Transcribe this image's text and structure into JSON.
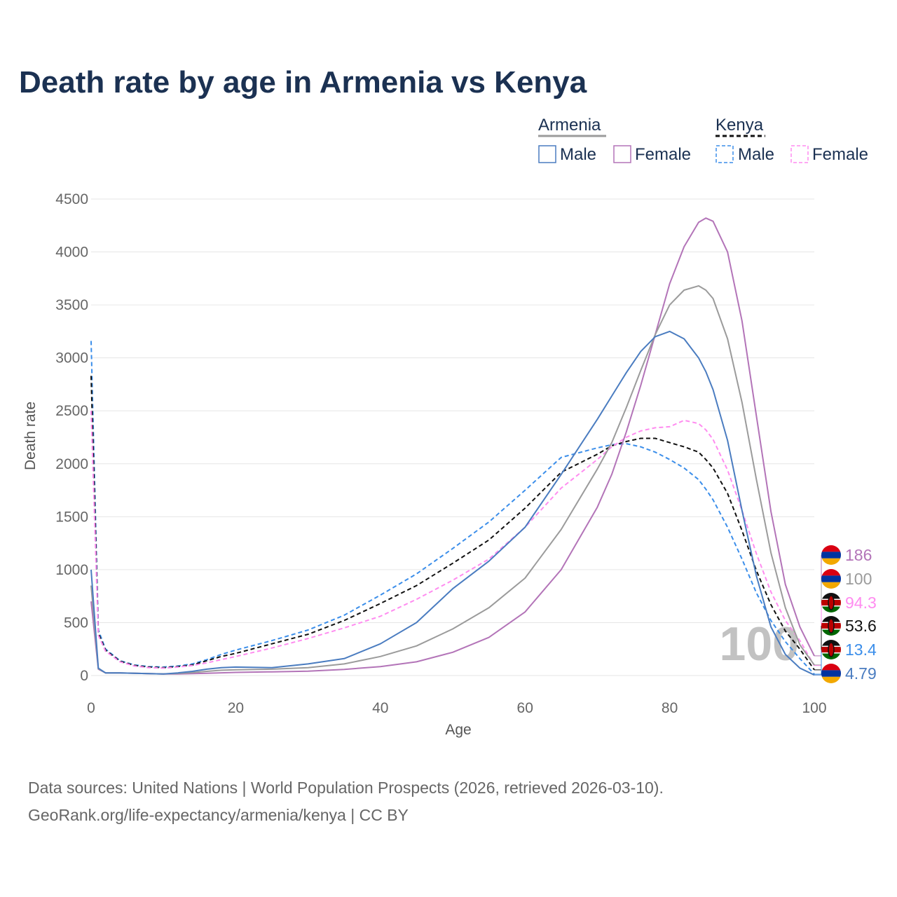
{
  "title": "Death rate by age in Armenia vs Kenya",
  "watermark": "100",
  "colors": {
    "armenia_male": "#4a7cc0",
    "armenia_female": "#b374b8",
    "armenia_total": "#9b9b9b",
    "kenya_male": "#3b8eea",
    "kenya_female": "#ff8cf0",
    "kenya_total": "#111111",
    "grid": "#e6e6e6",
    "title": "#1b3152",
    "tick": "#666666"
  },
  "legend": {
    "armenia": {
      "title": "Armenia",
      "male": "Male",
      "female": "Female"
    },
    "kenya": {
      "title": "Kenya",
      "male": "Male",
      "female": "Female"
    }
  },
  "footer": {
    "line1": "Data sources: United Nations | World Population Prospects (2026, retrieved 2026-03-10).",
    "line2": "GeoRank.org/life-expectancy/armenia/kenya | CC BY"
  },
  "chart_data": {
    "type": "line",
    "title": "Death rate by age in Armenia vs Kenya",
    "xlabel": "Age",
    "ylabel": "Death rate",
    "xlim": [
      0,
      100
    ],
    "ylim": [
      0,
      4500
    ],
    "xticks": [
      0,
      20,
      40,
      60,
      80,
      100
    ],
    "yticks": [
      0,
      500,
      1000,
      1500,
      2000,
      2500,
      3000,
      3500,
      4000,
      4500
    ],
    "x": [
      0,
      1,
      2,
      4,
      6,
      8,
      10,
      12,
      14,
      16,
      18,
      20,
      25,
      30,
      35,
      40,
      45,
      50,
      55,
      60,
      65,
      70,
      72,
      74,
      76,
      78,
      80,
      82,
      84,
      85,
      86,
      88,
      90,
      92,
      94,
      96,
      98,
      100
    ],
    "series": [
      {
        "key": "kenya_male",
        "name": "Kenya Male",
        "country": "Kenya",
        "sex": "Male",
        "dashed": true,
        "end_label": "13.4",
        "end_value": 13.4,
        "values": [
          3160,
          430,
          250,
          140,
          100,
          85,
          80,
          90,
          110,
          150,
          200,
          240,
          330,
          430,
          570,
          760,
          960,
          1200,
          1450,
          1750,
          2060,
          2150,
          2180,
          2190,
          2160,
          2110,
          2040,
          1960,
          1850,
          1760,
          1660,
          1400,
          1100,
          780,
          520,
          320,
          160,
          13
        ]
      },
      {
        "key": "kenya_total",
        "name": "Kenya Total",
        "country": "Kenya",
        "sex": "Total",
        "dashed": true,
        "end_label": "53.6",
        "end_value": 53.6,
        "values": [
          2830,
          400,
          240,
          135,
          95,
          80,
          75,
          85,
          100,
          140,
          180,
          210,
          300,
          390,
          520,
          680,
          850,
          1060,
          1280,
          1580,
          1920,
          2090,
          2170,
          2210,
          2240,
          2240,
          2200,
          2160,
          2110,
          2040,
          1960,
          1720,
          1370,
          990,
          670,
          420,
          250,
          54
        ]
      },
      {
        "key": "kenya_female",
        "name": "Kenya Female",
        "country": "Kenya",
        "sex": "Female",
        "dashed": true,
        "end_label": "94.3",
        "end_value": 94.3,
        "values": [
          2500,
          380,
          230,
          130,
          90,
          75,
          70,
          80,
          95,
          120,
          150,
          180,
          260,
          350,
          450,
          560,
          720,
          900,
          1100,
          1400,
          1770,
          2040,
          2160,
          2250,
          2310,
          2340,
          2350,
          2410,
          2380,
          2320,
          2230,
          1940,
          1560,
          1150,
          790,
          520,
          330,
          94
        ]
      },
      {
        "key": "armenia_female",
        "name": "Armenia Female",
        "country": "Armenia",
        "sex": "Female",
        "dashed": false,
        "end_label": "186",
        "end_value": 186,
        "values": [
          700,
          60,
          25,
          25,
          22,
          18,
          15,
          15,
          18,
          22,
          26,
          30,
          35,
          42,
          58,
          85,
          130,
          220,
          360,
          600,
          1000,
          1590,
          1900,
          2300,
          2740,
          3220,
          3700,
          4050,
          4280,
          4320,
          4290,
          4000,
          3350,
          2450,
          1550,
          860,
          460,
          186
        ]
      },
      {
        "key": "armenia_total",
        "name": "Armenia Total",
        "country": "Armenia",
        "sex": "Total",
        "dashed": false,
        "end_label": "100",
        "end_value": 100,
        "values": [
          850,
          65,
          25,
          25,
          22,
          18,
          15,
          20,
          28,
          40,
          50,
          55,
          60,
          75,
          110,
          180,
          280,
          440,
          640,
          920,
          1380,
          1950,
          2200,
          2530,
          2880,
          3220,
          3500,
          3640,
          3680,
          3640,
          3560,
          3180,
          2580,
          1850,
          1160,
          640,
          290,
          100
        ]
      },
      {
        "key": "armenia_male",
        "name": "Armenia Male",
        "country": "Armenia",
        "sex": "Male",
        "dashed": false,
        "end_label": "4.79",
        "end_value": 4.79,
        "values": [
          1000,
          70,
          25,
          25,
          22,
          18,
          15,
          25,
          40,
          60,
          75,
          80,
          75,
          110,
          160,
          300,
          500,
          820,
          1080,
          1400,
          1900,
          2420,
          2640,
          2860,
          3060,
          3200,
          3250,
          3180,
          3000,
          2870,
          2700,
          2220,
          1560,
          940,
          460,
          200,
          70,
          5
        ]
      }
    ]
  }
}
